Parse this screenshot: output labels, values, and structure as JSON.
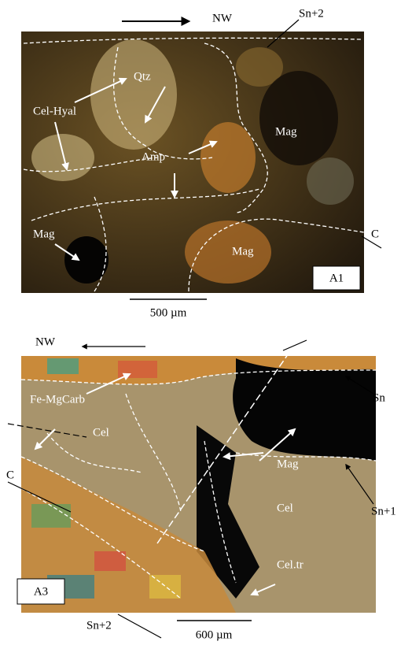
{
  "panels": [
    {
      "label": "A1",
      "scale": "500 µm",
      "direction": "NW",
      "annotations": [
        "Sn+2",
        "Qtz",
        "Cel-Hyal",
        "Mag",
        "Amp",
        "Mag",
        "Mag",
        "C"
      ]
    },
    {
      "label": "A3",
      "scale": "600 µm",
      "direction": "NW",
      "annotations": [
        "Fe-MgCarb",
        "Cel",
        "Sn",
        "Mag",
        "Cel",
        "Sn+1",
        "Cel.tr",
        "C",
        "Sn+2"
      ]
    }
  ]
}
